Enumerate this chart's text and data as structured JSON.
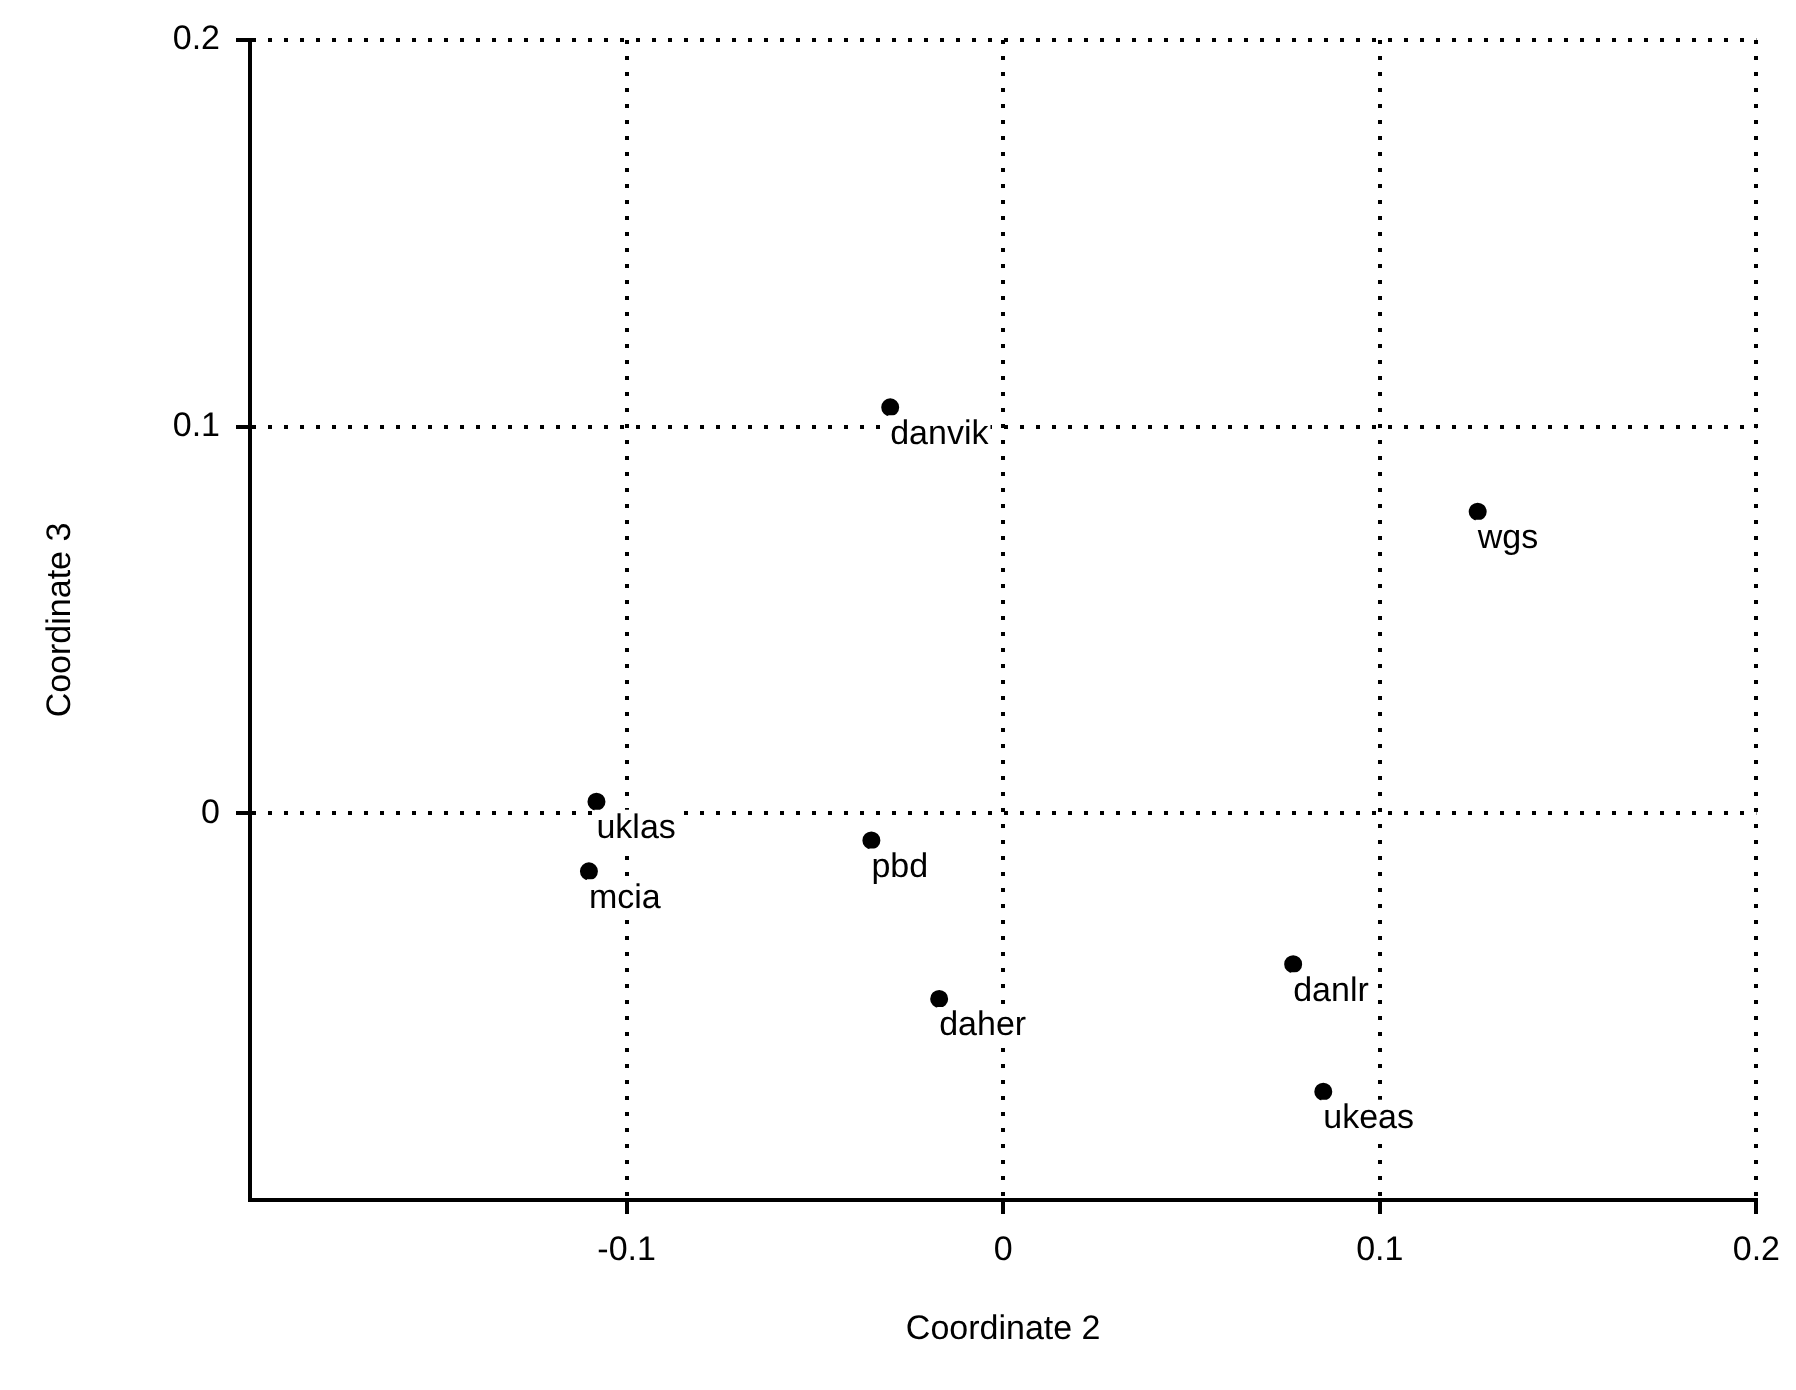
{
  "chart_data": {
    "type": "scatter",
    "xlabel": "Coordinate 2",
    "ylabel": "Coordinate 3",
    "x": [
      -0.03,
      0.126,
      -0.108,
      -0.11,
      -0.035,
      -0.017,
      0.077,
      0.085
    ],
    "values": [
      0.105,
      0.078,
      0.003,
      -0.015,
      -0.007,
      -0.048,
      -0.039,
      -0.072
    ],
    "color": "#000000",
    "marker": "circle",
    "xlim": [
      -0.2,
      0.2
    ],
    "xticks": [
      -0.1,
      0,
      0.1,
      0.2
    ],
    "ylim": [
      -0.1,
      0.2
    ],
    "yticks": [
      0,
      0.1,
      0.2
    ],
    "grid": true,
    "legend": false,
    "annotations": [
      {
        "text": "danvik",
        "x": -0.03,
        "y": 0.105
      },
      {
        "text": "wgs",
        "x": 0.126,
        "y": 0.078
      },
      {
        "text": "uklas",
        "x": -0.108,
        "y": 0.003
      },
      {
        "text": "mcia",
        "x": -0.11,
        "y": -0.015
      },
      {
        "text": "pbd",
        "x": -0.035,
        "y": -0.007
      },
      {
        "text": "daher",
        "x": -0.017,
        "y": -0.048
      },
      {
        "text": "danlr",
        "x": 0.077,
        "y": -0.039
      },
      {
        "text": "ukeas",
        "x": 0.085,
        "y": -0.072
      }
    ]
  }
}
